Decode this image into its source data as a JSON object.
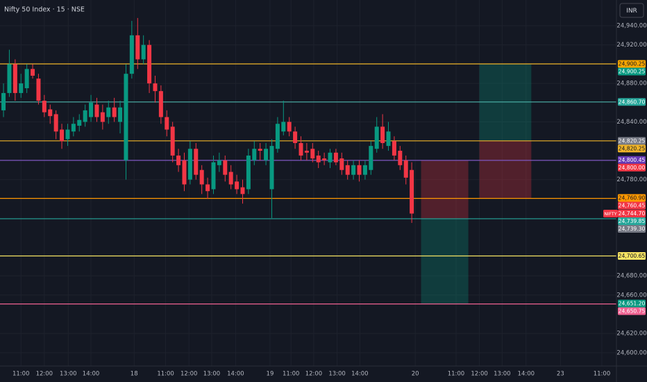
{
  "chart_data": {
    "type": "candlestick",
    "title": "Nifty 50 Index · 15 · NSE",
    "currency": "INR",
    "symbol": "NIFTY",
    "up_color": "#089981",
    "down_color": "#f23645",
    "grid": true,
    "open": [
      24852,
      24870,
      24900,
      24870,
      24875,
      24895,
      24885,
      24862,
      24853,
      24848,
      24832,
      24822,
      24830,
      24836,
      24840,
      24845,
      24858,
      24850,
      24845,
      24855,
      24840,
      24800,
      24890,
      24930,
      24905,
      24920,
      24880,
      24872,
      24845,
      24835,
      24805,
      24800,
      24780,
      24812,
      24790,
      24775,
      24770,
      24795,
      24800,
      24788,
      24778,
      24772,
      24770,
      24800,
      24812,
      24800,
      24770,
      24812,
      24830,
      24840,
      24830,
      24818,
      24810,
      24812,
      24805,
      24802,
      24798,
      24808,
      24802,
      24795,
      24785,
      24795,
      24785,
      24790,
      24812,
      24835,
      24815,
      24820,
      24810,
      24800,
      24790
    ],
    "high": [
      24880,
      24915,
      24905,
      24890,
      24900,
      24900,
      24890,
      24868,
      24858,
      24852,
      24838,
      24838,
      24845,
      24848,
      24858,
      24868,
      24865,
      24858,
      24862,
      24865,
      24862,
      24900,
      24945,
      24948,
      24930,
      24925,
      24888,
      24878,
      24852,
      24840,
      24812,
      24808,
      24820,
      24818,
      24795,
      24782,
      24805,
      24808,
      24805,
      24795,
      24785,
      24780,
      24812,
      24820,
      24818,
      24818,
      24822,
      24845,
      24862,
      24845,
      24835,
      24825,
      24818,
      24818,
      24810,
      24808,
      24812,
      24812,
      24808,
      24800,
      24800,
      24800,
      24800,
      24820,
      24845,
      24848,
      24840,
      24825,
      24815,
      24805,
      24798
    ],
    "low": [
      24845,
      24866,
      24862,
      24865,
      24870,
      24885,
      24858,
      24845,
      24838,
      24822,
      24812,
      24815,
      24825,
      24830,
      24835,
      24840,
      24840,
      24832,
      24838,
      24840,
      24828,
      24780,
      24885,
      24895,
      24900,
      24870,
      24860,
      24838,
      24825,
      24798,
      24788,
      24768,
      24775,
      24780,
      24765,
      24760,
      24765,
      24788,
      24778,
      24770,
      24765,
      24755,
      24765,
      24795,
      24800,
      24795,
      24740,
      24808,
      24826,
      24825,
      24812,
      24800,
      24800,
      24798,
      24792,
      24795,
      24792,
      24795,
      24785,
      24780,
      24780,
      24778,
      24780,
      24785,
      24808,
      24812,
      24810,
      24800,
      24790,
      24775,
      24735
    ],
    "close": [
      24870,
      24900,
      24870,
      24880,
      24895,
      24888,
      24862,
      24850,
      24846,
      24830,
      24820,
      24832,
      24838,
      24842,
      24852,
      24860,
      24845,
      24840,
      24855,
      24845,
      24855,
      24890,
      24930,
      24905,
      24920,
      24880,
      24872,
      24845,
      24832,
      24805,
      24795,
      24775,
      24812,
      24785,
      24775,
      24768,
      24798,
      24800,
      24785,
      24775,
      24770,
      24765,
      24805,
      24812,
      24810,
      24812,
      24815,
      24838,
      24840,
      24830,
      24818,
      24805,
      24808,
      24802,
      24798,
      24800,
      24808,
      24798,
      24790,
      24785,
      24795,
      24785,
      24795,
      24815,
      24835,
      24818,
      24830,
      24805,
      24795,
      24782,
      24744.7
    ],
    "xlim": [
      -0.6,
      105.1
    ],
    "ylim": [
      24586.2,
      24966.7
    ],
    "xticks": [
      {
        "value": 3.0,
        "label": "11:00"
      },
      {
        "value": 7.0,
        "label": "12:00"
      },
      {
        "value": 11.1,
        "label": "13:00"
      },
      {
        "value": 15.0,
        "label": "14:00"
      },
      {
        "value": 22.4,
        "label": "18"
      },
      {
        "value": 27.8,
        "label": "11:00"
      },
      {
        "value": 31.8,
        "label": "12:00"
      },
      {
        "value": 35.7,
        "label": "13:00"
      },
      {
        "value": 39.8,
        "label": "14:00"
      },
      {
        "value": 45.7,
        "label": "19"
      },
      {
        "value": 49.3,
        "label": "11:00"
      },
      {
        "value": 53.2,
        "label": "12:00"
      },
      {
        "value": 57.2,
        "label": "13:00"
      },
      {
        "value": 61.1,
        "label": "14:00"
      },
      {
        "value": 70.6,
        "label": "20"
      },
      {
        "value": 77.6,
        "label": "11:00"
      },
      {
        "value": 81.6,
        "label": "12:00"
      },
      {
        "value": 85.5,
        "label": "13:00"
      },
      {
        "value": 89.6,
        "label": "14:00"
      },
      {
        "value": 95.5,
        "label": "23"
      },
      {
        "value": 102.6,
        "label": "11:00"
      }
    ],
    "yticks": [
      {
        "value": 24940,
        "label": "24,940.00"
      },
      {
        "value": 24920,
        "label": "24,920.00"
      },
      {
        "value": 24880,
        "label": "24,880.00"
      },
      {
        "value": 24840,
        "label": "24,840.00"
      },
      {
        "value": 24780,
        "label": "24,780.00"
      },
      {
        "value": 24680,
        "label": "24,680.00"
      },
      {
        "value": 24660,
        "label": "24,660.00"
      },
      {
        "value": 24620,
        "label": "24,620.00"
      },
      {
        "value": 24600,
        "label": "24,600.00"
      }
    ],
    "levels": [
      {
        "value": 24900.25,
        "color": "#f0b429"
      },
      {
        "value": 24860.7,
        "color": "#4db6ac"
      },
      {
        "value": 24820.25,
        "color": "#f0b429"
      },
      {
        "value": 24800.0,
        "color": "#7e57c2"
      },
      {
        "value": 24760.45,
        "color": "#ff9800"
      },
      {
        "value": 24739.3,
        "color": "#26a69a"
      },
      {
        "value": 24700.65,
        "color": "#f7e463"
      },
      {
        "value": 24650.75,
        "color": "#f06292"
      }
    ],
    "positions": [
      {
        "x_from": 71.6,
        "x_to": 79.7,
        "entry": 24739.3,
        "stop": 24800.0,
        "target": 24651.2
      },
      {
        "x_from": 81.6,
        "x_to": 90.5,
        "entry": 24820.25,
        "stop": 24760.9,
        "target": 24900.25
      }
    ],
    "price_labels": [
      {
        "value": 24900.25,
        "label": "24,900.25",
        "color": "#f7a600",
        "text_color": "#131722"
      },
      {
        "value": 24900.25,
        "label": "24,900.25",
        "color": "#089981",
        "text_color": "#ffffff"
      },
      {
        "value": 24860.7,
        "label": "24,860.70",
        "color": "#26a69a",
        "text_color": "#ffffff"
      },
      {
        "value": 24820.25,
        "label": "24,820.25",
        "color": "#787b86",
        "text_color": "#ffffff"
      },
      {
        "value": 24820.25,
        "label": "24,820.25",
        "color": "#f0b429",
        "text_color": "#131722"
      },
      {
        "value": 24800.45,
        "label": "24,800.45",
        "color": "#673ab7",
        "text_color": "#ffffff"
      },
      {
        "value": 24800.0,
        "label": "24,800.00",
        "color": "#f23645",
        "text_color": "#ffffff"
      },
      {
        "value": 24760.9,
        "label": "24,760.90",
        "color": "#ff9800",
        "text_color": "#131722"
      },
      {
        "value": 24760.45,
        "label": "24,760.45",
        "color": "#f23645",
        "text_color": "#ffffff"
      },
      {
        "value": 24744.7,
        "label": "24,744.70",
        "color": "#f23645",
        "text_color": "#ffffff"
      },
      {
        "value": 24739.85,
        "label": "24,739.85",
        "color": "#26a69a",
        "text_color": "#ffffff"
      },
      {
        "value": 24739.3,
        "label": "24,739.30",
        "color": "#787b86",
        "text_color": "#ffffff"
      },
      {
        "value": 24700.65,
        "label": "24,700.65",
        "color": "#f7e463",
        "text_color": "#131722"
      },
      {
        "value": 24651.2,
        "label": "24,651.20",
        "color": "#089981",
        "text_color": "#ffffff"
      },
      {
        "value": 24650.75,
        "label": "24,650.75",
        "color": "#f06292",
        "text_color": "#ffffff"
      }
    ]
  }
}
